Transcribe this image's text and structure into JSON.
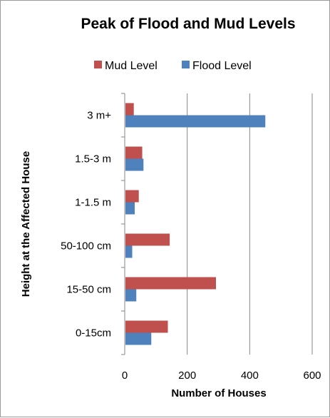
{
  "chart_data": {
    "type": "bar",
    "orientation": "horizontal",
    "title": "Peak of Flood and Mud Levels",
    "xlabel": "Number of Houses",
    "ylabel": "Height at the Affected House",
    "categories": [
      "0-15cm",
      "15-50 cm",
      "50-100 cm",
      "1-1.5 m",
      "1.5-3 m",
      "3 m+"
    ],
    "series": [
      {
        "name": "Mud Level",
        "color": "#C0504D",
        "values": [
          138,
          292,
          144,
          45,
          56,
          29
        ]
      },
      {
        "name": "Flood Level",
        "color": "#4F81BD",
        "values": [
          85,
          37,
          24,
          32,
          60,
          450
        ]
      }
    ],
    "legend_order": [
      "Mud Level",
      "Flood Level"
    ],
    "xlim": [
      0,
      600
    ],
    "x_ticks": [
      "0",
      "200",
      "400",
      "600"
    ],
    "grid": "vertical major gridlines",
    "legend_position": "top"
  }
}
